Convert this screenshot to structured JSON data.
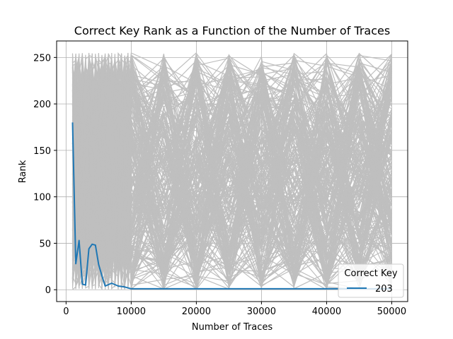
{
  "chart_data": {
    "type": "line",
    "title": "Correct Key Rank as a Function of the Number of Traces",
    "xlabel": "Number of Traces",
    "ylabel": "Rank",
    "xlim": [
      -1450,
      52450
    ],
    "ylim": [
      -12.75,
      267.75
    ],
    "xticks": [
      0,
      10000,
      20000,
      30000,
      40000,
      50000
    ],
    "xtick_labels": [
      "0",
      "10000",
      "20000",
      "30000",
      "40000",
      "50000"
    ],
    "yticks": [
      0,
      50,
      100,
      150,
      200,
      250
    ],
    "ytick_labels": [
      "0",
      "50",
      "100",
      "150",
      "200",
      "250"
    ],
    "grid": true,
    "legend": {
      "title": "Correct Key",
      "placement": "lower-right",
      "entries": [
        "203"
      ]
    },
    "background_series": {
      "description_count": 255,
      "color": "#bfbfbf",
      "value_range": [
        0,
        255
      ]
    },
    "series": [
      {
        "name": "203",
        "color": "#1f77b4",
        "x": [
          1000,
          1500,
          2000,
          2500,
          3000,
          3500,
          4000,
          4500,
          5000,
          5500,
          6000,
          7000,
          8000,
          9000,
          10000,
          15000,
          20000,
          25000,
          30000,
          35000,
          40000,
          45000,
          50000
        ],
        "values": [
          180,
          28,
          53,
          6,
          5,
          44,
          49,
          48,
          27,
          15,
          4,
          7,
          4,
          3,
          1,
          1,
          1,
          1,
          1,
          1,
          1,
          1,
          1
        ]
      }
    ]
  },
  "colors": {
    "grid": "#b0b0b0",
    "background_lines": "#bfbfbf",
    "correct_key_line": "#1f77b4",
    "axes": "#000000"
  }
}
